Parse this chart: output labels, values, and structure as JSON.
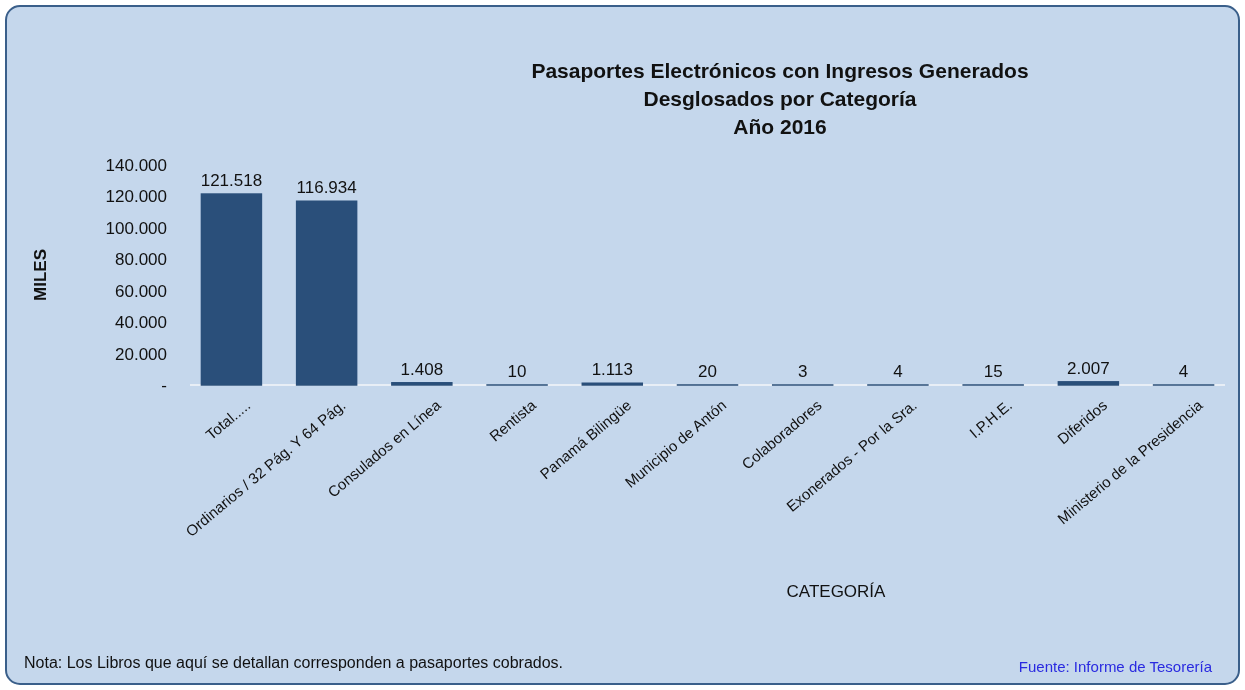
{
  "chart_data": {
    "type": "bar",
    "title": "Pasaportes Electrónicos con Ingresos Generados\nDesglosados por Categoría\nAño 2016",
    "xlabel": "CATEGORÍA",
    "ylabel": "MILES",
    "categories": [
      "Total.....",
      "Ordinarios / 32 Pág. Y 64 Pág.",
      "Consulados en Línea",
      "Rentista",
      "Panamá Bilingüe",
      "Municipio de Antón",
      "Colaboradores",
      "Exonerados - Por la Sra.",
      "I.P.H.E.",
      "Diferidos",
      "Ministerio de la Presidencia"
    ],
    "values": [
      121518,
      116934,
      1408,
      10,
      1113,
      20,
      3,
      4,
      15,
      2007,
      4
    ],
    "value_labels": [
      "121.518",
      "116.934",
      "1.408",
      "10",
      "1.113",
      "20",
      "3",
      "4",
      "15",
      "2.007",
      "4"
    ],
    "color": "#2a4f7a",
    "ylim": [
      0,
      140000
    ],
    "yticks": [
      {
        "value": 0,
        "label": "-"
      },
      {
        "value": 20000,
        "label": "20.000"
      },
      {
        "value": 40000,
        "label": "40.000"
      },
      {
        "value": 60000,
        "label": "60.000"
      },
      {
        "value": 80000,
        "label": "80.000"
      },
      {
        "value": 100000,
        "label": "100.000"
      },
      {
        "value": 120000,
        "label": "120.000"
      },
      {
        "value": 140000,
        "label": "140.000"
      }
    ],
    "annotations": [
      "Nota: Los Libros que aquí se detallan corresponden a pasaportes cobrados.",
      "Fuente: Informe de Tesorería"
    ]
  }
}
